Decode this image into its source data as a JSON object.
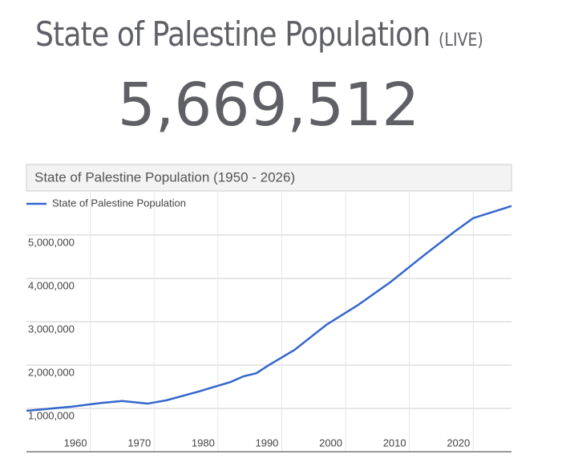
{
  "header": {
    "title": "State of Palestine Population",
    "badge": "(LIVE)",
    "live_count": "5,669,512"
  },
  "chart_data": {
    "type": "line",
    "title": "State of Palestine Population (1950 - 2026)",
    "x": [
      1950,
      1957,
      1962,
      1965,
      1969,
      1972,
      1977,
      1982,
      1984,
      1986,
      1988,
      1992,
      1997,
      2002,
      2007,
      2012,
      2017,
      2020,
      2026
    ],
    "series": [
      {
        "name": "State of Palestine Population",
        "color": "#3366cc",
        "values": [
          944000,
          1040000,
          1130000,
          1170000,
          1110000,
          1190000,
          1390000,
          1610000,
          1740000,
          1810000,
          2000000,
          2350000,
          2930000,
          3390000,
          3910000,
          4500000,
          5070000,
          5390000,
          5670000
        ]
      }
    ],
    "xlim": [
      1950,
      2026
    ],
    "xticks": [
      1960,
      1970,
      1980,
      1990,
      2000,
      2010,
      2020
    ],
    "ylim": [
      0,
      5980000
    ],
    "yticks": [
      {
        "value": 1000000,
        "label": "1,000,000"
      },
      {
        "value": 2000000,
        "label": "2,000,000"
      },
      {
        "value": 3000000,
        "label": "3,000,000"
      },
      {
        "value": 4000000,
        "label": "4,000,000"
      },
      {
        "value": 5000000,
        "label": "5,000,000"
      }
    ],
    "grid": true,
    "legend": "top-left"
  }
}
